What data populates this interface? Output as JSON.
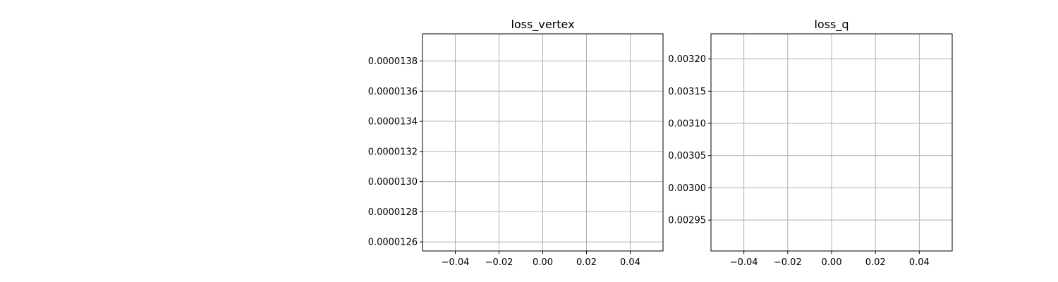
{
  "chart_data": [
    {
      "type": "line",
      "title": "loss_vertex",
      "xlabel": "",
      "ylabel": "",
      "xlim": [
        -0.055,
        0.055
      ],
      "ylim": [
        1.254e-05,
        1.398e-05
      ],
      "x_ticks": [
        -0.04,
        -0.02,
        0.0,
        0.02,
        0.04
      ],
      "x_tick_labels": [
        "−0.04",
        "−0.02",
        "0.00",
        "0.02",
        "0.04"
      ],
      "y_ticks": [
        1.26e-05,
        1.28e-05,
        1.3e-05,
        1.32e-05,
        1.34e-05,
        1.36e-05,
        1.38e-05
      ],
      "y_tick_labels": [
        "0.0000126",
        "0.0000128",
        "0.0000130",
        "0.0000132",
        "0.0000134",
        "0.0000136",
        "0.0000138"
      ],
      "grid": true,
      "series": []
    },
    {
      "type": "line",
      "title": "loss_q",
      "xlabel": "",
      "ylabel": "",
      "xlim": [
        -0.055,
        0.055
      ],
      "ylim": [
        0.002902,
        0.003239
      ],
      "x_ticks": [
        -0.04,
        -0.02,
        0.0,
        0.02,
        0.04
      ],
      "x_tick_labels": [
        "−0.04",
        "−0.02",
        "0.00",
        "0.02",
        "0.04"
      ],
      "y_ticks": [
        0.00295,
        0.003,
        0.00305,
        0.0031,
        0.00315,
        0.0032
      ],
      "y_tick_labels": [
        "0.00295",
        "0.00300",
        "0.00305",
        "0.00310",
        "0.00315",
        "0.00320"
      ],
      "grid": true,
      "series": []
    }
  ]
}
